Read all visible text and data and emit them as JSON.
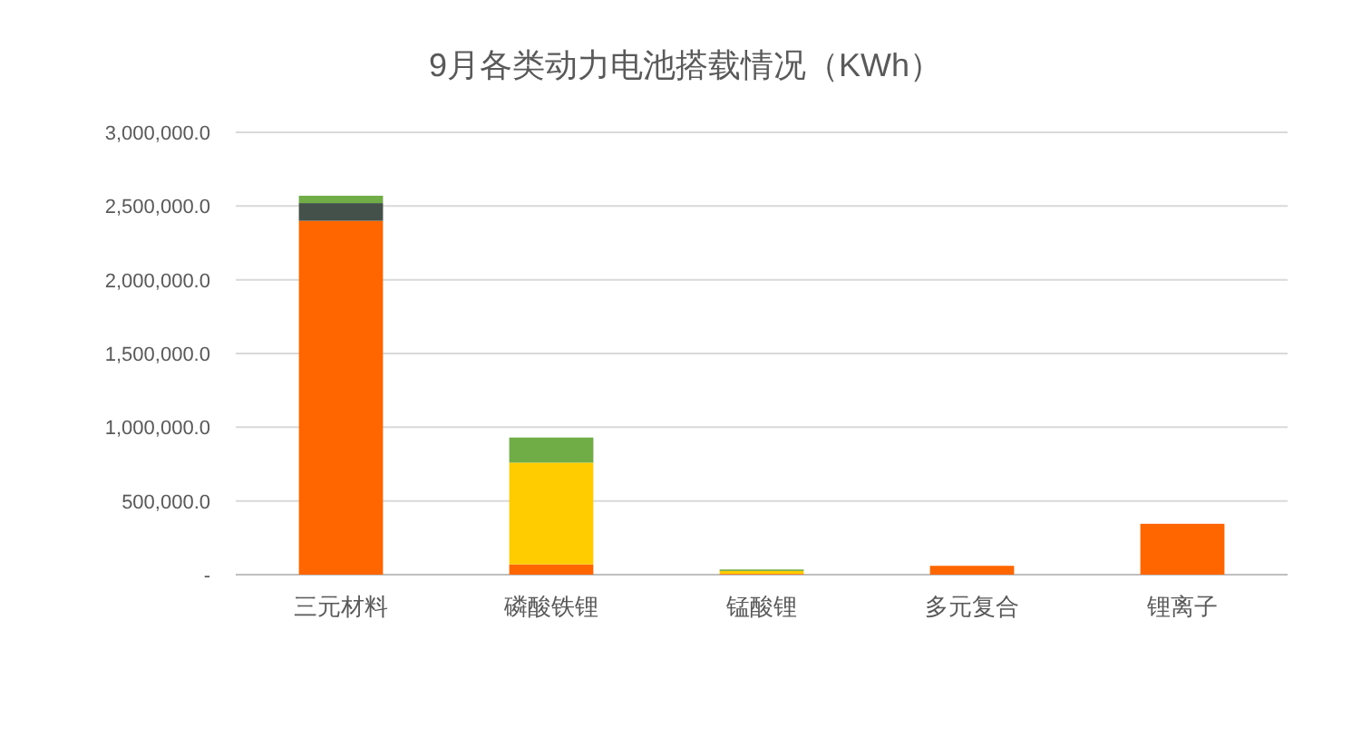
{
  "chart_data": {
    "type": "bar",
    "stacked": true,
    "title": "9月各类动力电池搭载情况（KWh）",
    "categories": [
      "三元材料",
      "磷酸铁锂",
      "锰酸锂",
      "多元复合",
      "锂离子"
    ],
    "series": [
      {
        "color": "#ff6600",
        "values": [
          2400000,
          70000,
          5000,
          60000,
          345000
        ]
      },
      {
        "color": "#ffcc00",
        "values": [
          0,
          690000,
          20000,
          0,
          0
        ]
      },
      {
        "color": "#44504a",
        "values": [
          120000,
          0,
          0,
          0,
          0
        ]
      },
      {
        "color": "#70ad47",
        "values": [
          50000,
          170000,
          10000,
          0,
          0
        ]
      }
    ],
    "ylim": [
      0,
      3000000
    ],
    "yticks": [
      {
        "value": 0,
        "label": "-"
      },
      {
        "value": 500000,
        "label": "500,000.0"
      },
      {
        "value": 1000000,
        "label": "1,000,000.0"
      },
      {
        "value": 1500000,
        "label": "1,500,000.0"
      },
      {
        "value": 2000000,
        "label": "2,000,000.0"
      },
      {
        "value": 2500000,
        "label": "2,500,000.0"
      },
      {
        "value": 3000000,
        "label": "3,000,000.0"
      }
    ],
    "grid": "y"
  }
}
